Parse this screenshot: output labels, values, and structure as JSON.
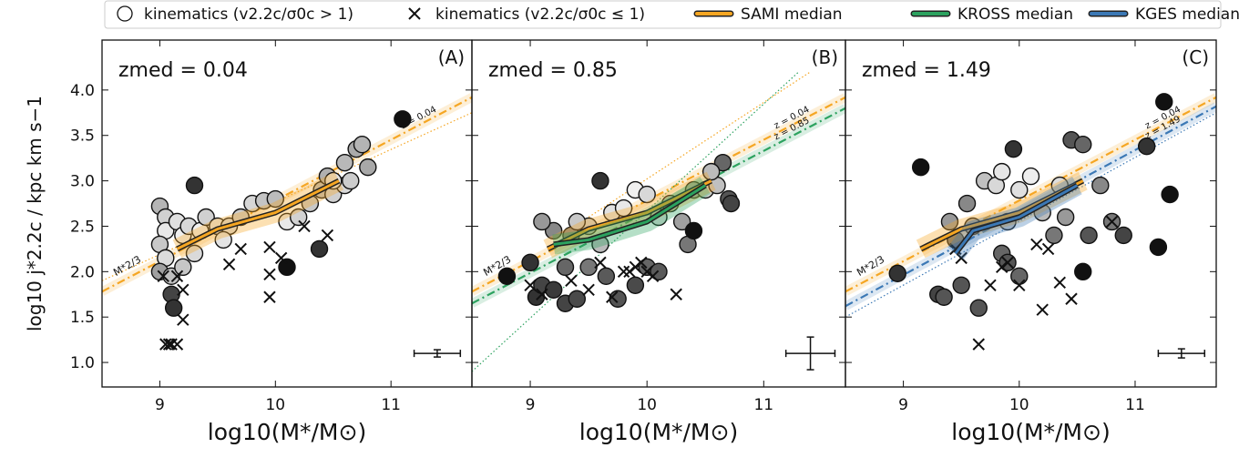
{
  "chart_data": [
    {
      "type": "scatter",
      "panel_label": "(A)",
      "annotation": "zmed = 0.04",
      "xlabel": "log10(M*/M⊙)",
      "ylabel": "log10 j*2.2c / kpc km s−1",
      "xlim": [
        8.5,
        11.7
      ],
      "ylim": [
        0.73,
        4.55
      ],
      "xticks": [
        9,
        10,
        11
      ],
      "yticks": [
        {
          "value": 1,
          "label": "1.0"
        },
        1.5,
        {
          "value": 2,
          "label": "2.0"
        },
        2.5,
        {
          "value": 3,
          "label": "3.0"
        },
        3.5,
        {
          "value": 4,
          "label": "4.0"
        }
      ],
      "series": [
        {
          "name": "kinematics (v2.2c/σ0c > 1)",
          "marker": "circle",
          "x": [
            9.0,
            9.05,
            9.05,
            9.0,
            9.05,
            9.0,
            9.1,
            9.1,
            9.12,
            9.15,
            9.2,
            9.25,
            9.3,
            9.35,
            9.4,
            9.5,
            9.6,
            9.7,
            9.8,
            9.9,
            10.0,
            10.1,
            10.2,
            10.3,
            10.4,
            10.45,
            10.5,
            10.6,
            10.7,
            10.75,
            10.6,
            10.5,
            10.1,
            10.38,
            11.1,
            10.8,
            10.65,
            9.55,
            9.3,
            9.2
          ],
          "values": [
            2.72,
            2.6,
            2.45,
            2.3,
            2.15,
            2.0,
            1.95,
            1.75,
            1.6,
            2.55,
            2.4,
            2.5,
            2.95,
            2.45,
            2.6,
            2.5,
            2.5,
            2.6,
            2.75,
            2.78,
            2.8,
            2.55,
            2.6,
            2.75,
            2.9,
            3.05,
            2.85,
            3.2,
            3.35,
            3.4,
            2.95,
            3.0,
            2.05,
            2.25,
            3.68,
            3.15,
            3.0,
            2.35,
            2.2,
            2.05
          ],
          "colors": [
            "#b5b5b5",
            "#d0d0d0",
            "#e8e8e8",
            "#c8c8c8",
            "#dcdcdc",
            "#a0a0a0",
            "#c0c0c0",
            "#444444",
            "#333333",
            "#e0e0e0",
            "#eeeeee",
            "#d8d8d8",
            "#333333",
            "#f0f0f0",
            "#d0d0d0",
            "#e6e6e6",
            "#dddddd",
            "#cccccc",
            "#d6d6d6",
            "#c4c4c4",
            "#bcbcbc",
            "#e8e8e8",
            "#d2d2d2",
            "#c8c8c8",
            "#bdbdbd",
            "#b0b0b0",
            "#cfcfcf",
            "#b8b8b8",
            "#aaaaaa",
            "#b4b4b4",
            "#d8d8d8",
            "#e2e2e2",
            "#111111",
            "#333333",
            "#111111",
            "#a8a8a8",
            "#cccccc",
            "#e4e4e4",
            "#dadada",
            "#c6c6c6"
          ]
        },
        {
          "name": "kinematics (v2.2c/σ0c ≤ 1)",
          "marker": "x",
          "x": [
            9.05,
            9.08,
            9.1,
            9.15,
            9.03,
            9.15,
            9.2,
            9.2,
            9.6,
            9.7,
            9.95,
            9.95,
            9.95,
            10.05,
            10.25,
            10.45
          ],
          "values": [
            1.2,
            1.2,
            1.2,
            1.2,
            1.95,
            1.95,
            1.8,
            1.47,
            2.08,
            2.25,
            1.97,
            1.72,
            2.27,
            2.15,
            2.5,
            2.4
          ]
        },
        {
          "name": "SAMI median",
          "marker": "line",
          "color": "#f5a623",
          "x": [
            9.15,
            9.5,
            10.0,
            10.55
          ],
          "values": [
            2.25,
            2.47,
            2.65,
            3.0
          ]
        }
      ],
      "reference_lines": [
        {
          "label": "z = 0.04",
          "color": "#f5a623",
          "style": "dashed",
          "x": [
            8.5,
            11.7
          ],
          "values": [
            1.78,
            3.92
          ]
        },
        {
          "color": "#f5a623",
          "style": "dotted",
          "x": [
            8.5,
            11.7
          ],
          "values": [
            1.9,
            3.75
          ]
        }
      ],
      "slope_label": "M*2/3",
      "errorbar": {
        "x": 11.4,
        "y": 1.1,
        "xerr": 0.2,
        "yerr": 0.04
      }
    },
    {
      "type": "scatter",
      "panel_label": "(B)",
      "annotation": "zmed = 0.85",
      "xlim": [
        8.5,
        11.7
      ],
      "ylim": [
        0.73,
        4.55
      ],
      "xticks": [
        9,
        10,
        11
      ],
      "series": [
        {
          "name": "kinematics (v2.2c/σ0c > 1)",
          "marker": "circle",
          "x": [
            8.8,
            9.0,
            9.05,
            9.1,
            9.2,
            9.3,
            9.35,
            9.4,
            9.5,
            9.6,
            9.7,
            9.8,
            9.9,
            10.0,
            10.1,
            10.2,
            10.3,
            10.4,
            10.5,
            10.6,
            10.65,
            10.7,
            10.72,
            10.35,
            10.4,
            9.6,
            9.4,
            9.75,
            9.9,
            10.0,
            10.1,
            9.5,
            9.3,
            9.65,
            9.2,
            9.1,
            10.55
          ],
          "values": [
            1.95,
            2.1,
            1.72,
            1.85,
            1.8,
            1.65,
            2.4,
            1.7,
            2.5,
            2.3,
            2.65,
            2.7,
            2.9,
            2.85,
            2.6,
            2.75,
            2.55,
            2.9,
            2.9,
            2.95,
            3.2,
            2.8,
            2.75,
            2.3,
            2.45,
            3.0,
            2.55,
            1.7,
            1.85,
            2.05,
            2.0,
            2.05,
            2.05,
            1.95,
            2.45,
            2.55,
            3.1
          ],
          "colors": [
            "#111111",
            "#333333",
            "#333333",
            "#444444",
            "#3a3a3a",
            "#444444",
            "#888888",
            "#4a4a4a",
            "#d0d0d0",
            "#bbbbbb",
            "#e0e0e0",
            "#e8e8e8",
            "#f0f0f0",
            "#d8d8d8",
            "#dddddd",
            "#cccccc",
            "#a0a0a0",
            "#b8b8b8",
            "#d4d4d4",
            "#c0c0c0",
            "#666666",
            "#555555",
            "#444444",
            "#777777",
            "#111111",
            "#333333",
            "#c8c8c8",
            "#555555",
            "#4a4a4a",
            "#666666",
            "#5a5a5a",
            "#777777",
            "#666666",
            "#5a5a5a",
            "#888888",
            "#999999",
            "#bbbbbb"
          ]
        },
        {
          "name": "kinematics (v2.2c/σ0c ≤ 1)",
          "marker": "x",
          "x": [
            9.0,
            9.1,
            9.35,
            9.5,
            9.7,
            9.8,
            9.9,
            9.95,
            10.0,
            10.05,
            10.25,
            9.6,
            9.85
          ],
          "values": [
            1.85,
            1.75,
            1.9,
            1.8,
            1.72,
            2.0,
            2.05,
            2.1,
            2.0,
            1.95,
            1.75,
            2.1,
            2.0
          ]
        },
        {
          "name": "SAMI median",
          "marker": "line",
          "color": "#f5a623",
          "x": [
            9.15,
            9.5,
            10.0,
            10.55
          ],
          "values": [
            2.25,
            2.47,
            2.65,
            3.0
          ]
        },
        {
          "name": "KROSS median",
          "marker": "line",
          "color": "#2ca25f",
          "x": [
            9.2,
            9.5,
            10.0,
            10.5
          ],
          "values": [
            2.3,
            2.35,
            2.55,
            2.95
          ]
        }
      ],
      "reference_lines": [
        {
          "label": "z = 0.04",
          "color": "#f5a623",
          "style": "dashed",
          "x": [
            8.5,
            11.7
          ],
          "values": [
            1.78,
            3.92
          ]
        },
        {
          "label": "z = 0.85",
          "color": "#2ca25f",
          "style": "dashed",
          "x": [
            8.5,
            11.7
          ],
          "values": [
            1.65,
            3.8
          ]
        },
        {
          "color": "#2ca25f",
          "style": "dotted",
          "x": [
            8.5,
            11.3
          ],
          "values": [
            0.9,
            4.2
          ]
        },
        {
          "color": "#f5a623",
          "style": "dotted",
          "x": [
            9.5,
            11.4
          ],
          "values": [
            2.6,
            4.2
          ]
        }
      ],
      "slope_label": "M*2/3",
      "errorbar": {
        "x": 11.4,
        "y": 1.1,
        "xerr": 0.21,
        "yerr": 0.18
      }
    },
    {
      "type": "scatter",
      "panel_label": "(C)",
      "annotation": "zmed = 1.49",
      "xlim": [
        8.5,
        11.7
      ],
      "ylim": [
        0.73,
        4.55
      ],
      "xticks": [
        9,
        10,
        11
      ],
      "series": [
        {
          "name": "kinematics (v2.2c/σ0c > 1)",
          "marker": "circle",
          "x": [
            8.95,
            9.15,
            9.3,
            9.35,
            9.4,
            9.45,
            9.5,
            9.55,
            9.65,
            9.7,
            9.8,
            9.85,
            9.9,
            9.95,
            10.0,
            10.1,
            10.2,
            10.35,
            10.45,
            10.55,
            10.6,
            10.7,
            10.8,
            10.9,
            11.1,
            11.2,
            11.3,
            11.25,
            10.55,
            9.85,
            9.9,
            10.0,
            10.3,
            10.4,
            9.6
          ],
          "values": [
            1.98,
            3.15,
            1.75,
            1.72,
            2.55,
            2.35,
            1.85,
            2.75,
            1.6,
            3.0,
            2.95,
            3.1,
            2.55,
            3.35,
            2.9,
            3.05,
            2.65,
            2.95,
            3.45,
            3.4,
            2.4,
            2.95,
            2.55,
            2.4,
            3.38,
            2.27,
            2.85,
            3.87,
            2.0,
            2.2,
            2.1,
            1.95,
            2.4,
            2.6,
            2.5
          ],
          "colors": [
            "#333333",
            "#111111",
            "#444444",
            "#555555",
            "#999999",
            "#777777",
            "#555555",
            "#888888",
            "#555555",
            "#c0c0c0",
            "#d8d8d8",
            "#e6e6e6",
            "#cccccc",
            "#333333",
            "#e0e0e0",
            "#eeeeee",
            "#bbbbbb",
            "#dddddd",
            "#555555",
            "#666666",
            "#555555",
            "#888888",
            "#777777",
            "#444444",
            "#333333",
            "#111111",
            "#111111",
            "#111111",
            "#111111",
            "#666666",
            "#555555",
            "#666666",
            "#777777",
            "#999999",
            "#aaaaaa"
          ]
        },
        {
          "name": "kinematics (v2.2c/σ0c ≤ 1)",
          "marker": "x",
          "x": [
            9.45,
            9.5,
            9.65,
            9.75,
            9.9,
            10.0,
            10.2,
            10.35,
            10.45,
            10.15,
            10.25,
            10.8,
            9.85
          ],
          "values": [
            2.25,
            2.15,
            1.2,
            1.85,
            2.1,
            1.85,
            1.58,
            1.88,
            1.7,
            2.3,
            2.25,
            2.55,
            2.05
          ]
        },
        {
          "name": "SAMI median",
          "marker": "line",
          "color": "#f5a623",
          "x": [
            9.15,
            9.5,
            10.0,
            10.55
          ],
          "values": [
            2.25,
            2.47,
            2.65,
            3.0
          ]
        },
        {
          "name": "KGES median",
          "marker": "line",
          "color": "#3b78b5",
          "x": [
            9.45,
            9.6,
            10.0,
            10.5
          ],
          "values": [
            2.2,
            2.45,
            2.6,
            2.95
          ]
        }
      ],
      "reference_lines": [
        {
          "label": "z = 0.04",
          "color": "#f5a623",
          "style": "dashed",
          "x": [
            8.5,
            11.7
          ],
          "values": [
            1.78,
            3.92
          ]
        },
        {
          "label": "z = 1.49",
          "color": "#3b78b5",
          "style": "dashed",
          "x": [
            8.5,
            11.7
          ],
          "values": [
            1.62,
            3.82
          ]
        },
        {
          "color": "#3b78b5",
          "style": "dotted",
          "x": [
            8.5,
            11.7
          ],
          "values": [
            1.5,
            3.75
          ]
        }
      ],
      "slope_label": "M*2/3",
      "errorbar": {
        "x": 11.4,
        "y": 1.1,
        "xerr": 0.2,
        "yerr": 0.05
      }
    }
  ]
}
